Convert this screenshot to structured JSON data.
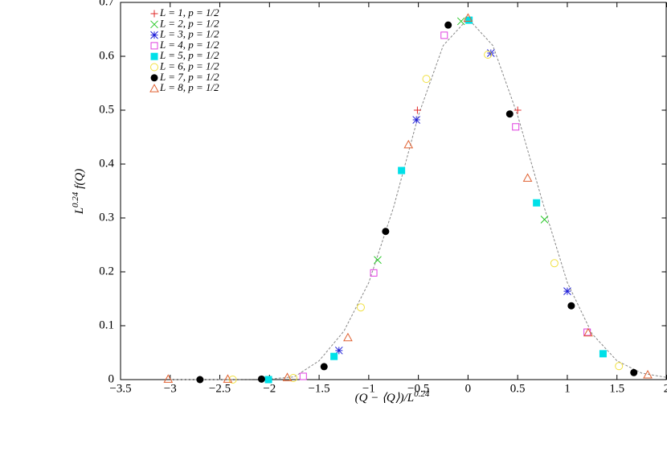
{
  "chart_data": {
    "type": "scatter",
    "xlabel": {
      "text": "(Q − ⟨Q⟩)/L",
      "sup": "0.24"
    },
    "ylabel": {
      "text": "L",
      "sup": "0.24",
      "rest": "f(Q)"
    },
    "xlim": [
      -3.5,
      2
    ],
    "ylim": [
      0,
      0.7
    ],
    "xticks": [
      {
        "value": -3.5,
        "label": "−3.5"
      },
      {
        "value": -3,
        "label": "−3"
      },
      {
        "value": -2.5,
        "label": "−2.5"
      },
      {
        "value": -2,
        "label": "−2"
      },
      {
        "value": -1.5,
        "label": "−1.5"
      },
      {
        "value": -1,
        "label": "−1"
      },
      {
        "value": -0.5,
        "label": "−0.5"
      },
      0,
      0.5,
      1,
      1.5,
      2
    ],
    "yticks": [
      0,
      0.1,
      0.2,
      0.3,
      0.4,
      0.5,
      0.6,
      0.7
    ],
    "legend": "top-left",
    "curve": {
      "color": "#888888",
      "x": [
        -3,
        -2.5,
        -2,
        -1.75,
        -1.5,
        -1.25,
        -1,
        -0.75,
        -0.5,
        -0.25,
        0,
        0.25,
        0.5,
        0.75,
        1,
        1.25,
        1.5,
        1.75,
        2
      ],
      "values": [
        0,
        0,
        0.001,
        0.005,
        0.035,
        0.09,
        0.18,
        0.32,
        0.49,
        0.62,
        0.67,
        0.62,
        0.49,
        0.33,
        0.18,
        0.085,
        0.035,
        0.012,
        0.004
      ]
    },
    "series": [
      {
        "name": "L = 1, p = 1/2",
        "color": "#e02828",
        "marker": "plus",
        "x": [
          -0.51,
          0.5
        ],
        "values": [
          0.5,
          0.5
        ]
      },
      {
        "name": "L = 2, p = 1/2",
        "color": "#28c828",
        "marker": "cross",
        "x": [
          -0.91,
          -0.07,
          0.77
        ],
        "values": [
          0.222,
          0.665,
          0.297
        ]
      },
      {
        "name": "L = 3, p = 1/2",
        "color": "#2020d8",
        "marker": "star",
        "x": [
          -1.3,
          -0.52,
          0.23,
          1.0
        ],
        "values": [
          0.054,
          0.482,
          0.606,
          0.164
        ]
      },
      {
        "name": "L = 4, p = 1/2",
        "color": "#e040e0",
        "marker": "square-open",
        "x": [
          -1.66,
          -0.95,
          -0.24,
          0.48,
          1.2
        ],
        "values": [
          0.006,
          0.198,
          0.639,
          0.469,
          0.088
        ]
      },
      {
        "name": "L = 5, p = 1/2",
        "color": "#00e0e8",
        "marker": "square-filled",
        "x": [
          -2.01,
          -1.35,
          -0.67,
          0.01,
          0.69,
          1.36
        ],
        "values": [
          0,
          0.043,
          0.388,
          0.667,
          0.328,
          0.048
        ]
      },
      {
        "name": "L = 6, p = 1/2",
        "color": "#f0e040",
        "marker": "circle-open",
        "x": [
          -2.37,
          -1.76,
          -1.08,
          -0.42,
          0.2,
          0.87,
          1.52
        ],
        "values": [
          0,
          0.003,
          0.134,
          0.558,
          0.603,
          0.216,
          0.025
        ]
      },
      {
        "name": "L = 7, p = 1/2",
        "color": "#000000",
        "marker": "circle-filled",
        "x": [
          -2.7,
          -2.08,
          -1.45,
          -0.83,
          -0.2,
          0.42,
          1.04,
          1.67
        ],
        "values": [
          0,
          0.001,
          0.024,
          0.275,
          0.658,
          0.493,
          0.137,
          0.013
        ]
      },
      {
        "name": "L = 8, p = 1/2",
        "color": "#e06030",
        "marker": "triangle-open",
        "x": [
          -3.02,
          -2.42,
          -1.82,
          -1.21,
          -0.6,
          0,
          0.6,
          1.21,
          1.81
        ],
        "values": [
          0.001,
          0.001,
          0.004,
          0.078,
          0.436,
          0.671,
          0.374,
          0.087,
          0.009
        ]
      }
    ]
  }
}
